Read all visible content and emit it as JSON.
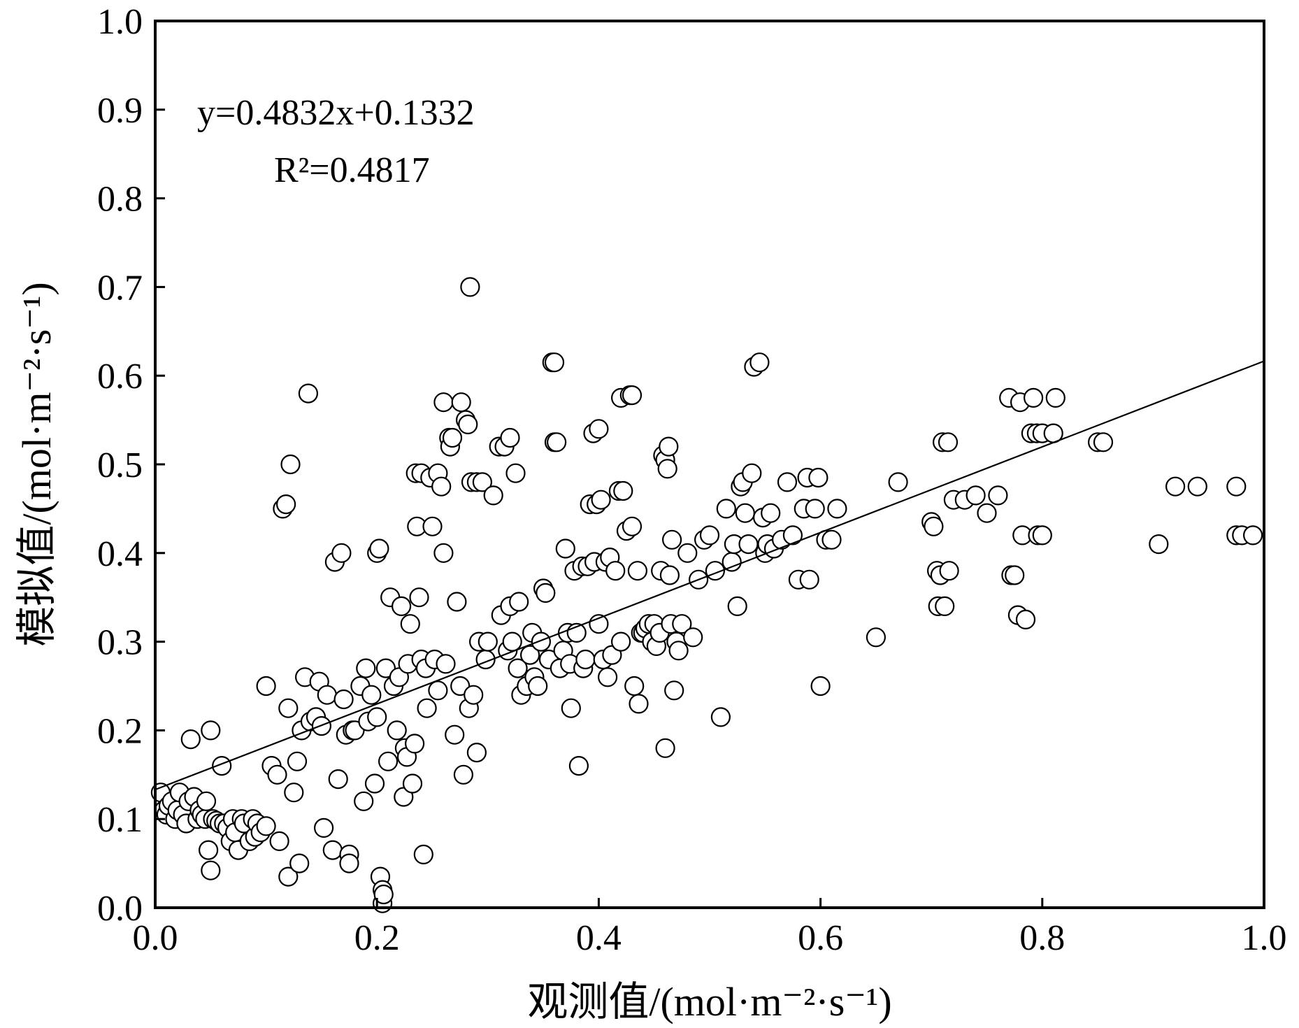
{
  "chart_data": {
    "type": "scatter",
    "xlabel": "观测值/(mol·m⁻²·s⁻¹)",
    "ylabel": "模拟值/(mol·m⁻²·s⁻¹)",
    "xlim": [
      0.0,
      1.0
    ],
    "ylim": [
      0.0,
      1.0
    ],
    "x_ticks": [
      "0.0",
      "0.2",
      "0.4",
      "0.6",
      "0.8",
      "1.0"
    ],
    "y_ticks": [
      "0.0",
      "0.1",
      "0.2",
      "0.3",
      "0.4",
      "0.5",
      "0.6",
      "0.7",
      "0.8",
      "0.9",
      "1.0"
    ],
    "grid": false,
    "annotations": {
      "equation": "y=0.4832x+0.1332",
      "r2": "R²=0.4817"
    },
    "fit_line": {
      "slope": 0.4832,
      "intercept": 0.1332
    },
    "points": [
      [
        0.005,
        0.13
      ],
      [
        0.008,
        0.11
      ],
      [
        0.01,
        0.105
      ],
      [
        0.012,
        0.115
      ],
      [
        0.015,
        0.12
      ],
      [
        0.018,
        0.1
      ],
      [
        0.02,
        0.11
      ],
      [
        0.022,
        0.13
      ],
      [
        0.025,
        0.105
      ],
      [
        0.028,
        0.095
      ],
      [
        0.03,
        0.12
      ],
      [
        0.032,
        0.19
      ],
      [
        0.035,
        0.125
      ],
      [
        0.038,
        0.1
      ],
      [
        0.04,
        0.11
      ],
      [
        0.042,
        0.105
      ],
      [
        0.045,
        0.1
      ],
      [
        0.046,
        0.12
      ],
      [
        0.048,
        0.065
      ],
      [
        0.05,
        0.2
      ],
      [
        0.05,
        0.042
      ],
      [
        0.052,
        0.1
      ],
      [
        0.055,
        0.098
      ],
      [
        0.058,
        0.095
      ],
      [
        0.06,
        0.16
      ],
      [
        0.062,
        0.095
      ],
      [
        0.065,
        0.09
      ],
      [
        0.068,
        0.075
      ],
      [
        0.07,
        0.1
      ],
      [
        0.072,
        0.085
      ],
      [
        0.075,
        0.065
      ],
      [
        0.078,
        0.1
      ],
      [
        0.08,
        0.095
      ],
      [
        0.085,
        0.075
      ],
      [
        0.088,
        0.1
      ],
      [
        0.09,
        0.08
      ],
      [
        0.092,
        0.095
      ],
      [
        0.095,
        0.085
      ],
      [
        0.1,
        0.092
      ],
      [
        0.1,
        0.25
      ],
      [
        0.105,
        0.16
      ],
      [
        0.11,
        0.15
      ],
      [
        0.112,
        0.075
      ],
      [
        0.115,
        0.45
      ],
      [
        0.118,
        0.455
      ],
      [
        0.12,
        0.035
      ],
      [
        0.12,
        0.225
      ],
      [
        0.122,
        0.5
      ],
      [
        0.125,
        0.13
      ],
      [
        0.128,
        0.165
      ],
      [
        0.13,
        0.05
      ],
      [
        0.132,
        0.2
      ],
      [
        0.135,
        0.26
      ],
      [
        0.138,
        0.58
      ],
      [
        0.14,
        0.21
      ],
      [
        0.145,
        0.215
      ],
      [
        0.148,
        0.255
      ],
      [
        0.15,
        0.205
      ],
      [
        0.152,
        0.09
      ],
      [
        0.155,
        0.24
      ],
      [
        0.16,
        0.065
      ],
      [
        0.162,
        0.39
      ],
      [
        0.165,
        0.145
      ],
      [
        0.168,
        0.4
      ],
      [
        0.17,
        0.235
      ],
      [
        0.172,
        0.195
      ],
      [
        0.175,
        0.06
      ],
      [
        0.175,
        0.05
      ],
      [
        0.178,
        0.2
      ],
      [
        0.18,
        0.2
      ],
      [
        0.185,
        0.25
      ],
      [
        0.188,
        0.12
      ],
      [
        0.19,
        0.27
      ],
      [
        0.192,
        0.21
      ],
      [
        0.195,
        0.24
      ],
      [
        0.198,
        0.14
      ],
      [
        0.2,
        0.4
      ],
      [
        0.2,
        0.215
      ],
      [
        0.202,
        0.405
      ],
      [
        0.203,
        0.035
      ],
      [
        0.205,
        0.02
      ],
      [
        0.205,
        0.005
      ],
      [
        0.206,
        0.015
      ],
      [
        0.208,
        0.27
      ],
      [
        0.21,
        0.165
      ],
      [
        0.212,
        0.35
      ],
      [
        0.215,
        0.25
      ],
      [
        0.218,
        0.2
      ],
      [
        0.22,
        0.26
      ],
      [
        0.222,
        0.34
      ],
      [
        0.224,
        0.125
      ],
      [
        0.225,
        0.18
      ],
      [
        0.227,
        0.17
      ],
      [
        0.228,
        0.275
      ],
      [
        0.23,
        0.32
      ],
      [
        0.232,
        0.14
      ],
      [
        0.234,
        0.185
      ],
      [
        0.235,
        0.49
      ],
      [
        0.236,
        0.43
      ],
      [
        0.238,
        0.35
      ],
      [
        0.24,
        0.49
      ],
      [
        0.24,
        0.28
      ],
      [
        0.242,
        0.06
      ],
      [
        0.244,
        0.27
      ],
      [
        0.245,
        0.225
      ],
      [
        0.248,
        0.485
      ],
      [
        0.25,
        0.43
      ],
      [
        0.252,
        0.28
      ],
      [
        0.255,
        0.49
      ],
      [
        0.255,
        0.245
      ],
      [
        0.258,
        0.475
      ],
      [
        0.26,
        0.57
      ],
      [
        0.26,
        0.4
      ],
      [
        0.262,
        0.275
      ],
      [
        0.265,
        0.53
      ],
      [
        0.266,
        0.52
      ],
      [
        0.268,
        0.53
      ],
      [
        0.27,
        0.195
      ],
      [
        0.272,
        0.345
      ],
      [
        0.275,
        0.25
      ],
      [
        0.276,
        0.57
      ],
      [
        0.278,
        0.15
      ],
      [
        0.28,
        0.55
      ],
      [
        0.282,
        0.545
      ],
      [
        0.283,
        0.225
      ],
      [
        0.284,
        0.7
      ],
      [
        0.285,
        0.48
      ],
      [
        0.287,
        0.24
      ],
      [
        0.29,
        0.48
      ],
      [
        0.29,
        0.175
      ],
      [
        0.292,
        0.3
      ],
      [
        0.295,
        0.48
      ],
      [
        0.298,
        0.28
      ],
      [
        0.3,
        0.3
      ],
      [
        0.305,
        0.465
      ],
      [
        0.31,
        0.52
      ],
      [
        0.312,
        0.33
      ],
      [
        0.315,
        0.52
      ],
      [
        0.318,
        0.29
      ],
      [
        0.32,
        0.53
      ],
      [
        0.32,
        0.34
      ],
      [
        0.322,
        0.3
      ],
      [
        0.325,
        0.49
      ],
      [
        0.327,
        0.27
      ],
      [
        0.328,
        0.345
      ],
      [
        0.33,
        0.24
      ],
      [
        0.335,
        0.25
      ],
      [
        0.338,
        0.285
      ],
      [
        0.34,
        0.31
      ],
      [
        0.342,
        0.26
      ],
      [
        0.345,
        0.25
      ],
      [
        0.348,
        0.3
      ],
      [
        0.35,
        0.36
      ],
      [
        0.352,
        0.355
      ],
      [
        0.355,
        0.28
      ],
      [
        0.358,
        0.615
      ],
      [
        0.36,
        0.615
      ],
      [
        0.36,
        0.525
      ],
      [
        0.362,
        0.525
      ],
      [
        0.365,
        0.27
      ],
      [
        0.368,
        0.29
      ],
      [
        0.37,
        0.405
      ],
      [
        0.372,
        0.31
      ],
      [
        0.374,
        0.275
      ],
      [
        0.375,
        0.225
      ],
      [
        0.378,
        0.38
      ],
      [
        0.38,
        0.31
      ],
      [
        0.382,
        0.16
      ],
      [
        0.385,
        0.385
      ],
      [
        0.386,
        0.27
      ],
      [
        0.388,
        0.28
      ],
      [
        0.39,
        0.385
      ],
      [
        0.392,
        0.455
      ],
      [
        0.395,
        0.535
      ],
      [
        0.396,
        0.39
      ],
      [
        0.398,
        0.455
      ],
      [
        0.4,
        0.54
      ],
      [
        0.4,
        0.32
      ],
      [
        0.402,
        0.46
      ],
      [
        0.404,
        0.28
      ],
      [
        0.406,
        0.39
      ],
      [
        0.408,
        0.26
      ],
      [
        0.41,
        0.395
      ],
      [
        0.412,
        0.285
      ],
      [
        0.415,
        0.38
      ],
      [
        0.418,
        0.47
      ],
      [
        0.42,
        0.575
      ],
      [
        0.42,
        0.3
      ],
      [
        0.422,
        0.47
      ],
      [
        0.425,
        0.425
      ],
      [
        0.428,
        0.578
      ],
      [
        0.43,
        0.578
      ],
      [
        0.43,
        0.43
      ],
      [
        0.432,
        0.25
      ],
      [
        0.435,
        0.38
      ],
      [
        0.436,
        0.23
      ],
      [
        0.438,
        0.31
      ],
      [
        0.44,
        0.31
      ],
      [
        0.442,
        0.315
      ],
      [
        0.445,
        0.32
      ],
      [
        0.448,
        0.3
      ],
      [
        0.45,
        0.32
      ],
      [
        0.452,
        0.295
      ],
      [
        0.455,
        0.31
      ],
      [
        0.456,
        0.38
      ],
      [
        0.458,
        0.51
      ],
      [
        0.46,
        0.505
      ],
      [
        0.46,
        0.18
      ],
      [
        0.462,
        0.495
      ],
      [
        0.463,
        0.52
      ],
      [
        0.464,
        0.375
      ],
      [
        0.465,
        0.32
      ],
      [
        0.466,
        0.415
      ],
      [
        0.468,
        0.245
      ],
      [
        0.47,
        0.3
      ],
      [
        0.472,
        0.29
      ],
      [
        0.475,
        0.32
      ],
      [
        0.48,
        0.4
      ],
      [
        0.485,
        0.305
      ],
      [
        0.49,
        0.37
      ],
      [
        0.495,
        0.415
      ],
      [
        0.5,
        0.42
      ],
      [
        0.505,
        0.38
      ],
      [
        0.51,
        0.215
      ],
      [
        0.515,
        0.45
      ],
      [
        0.52,
        0.39
      ],
      [
        0.522,
        0.41
      ],
      [
        0.525,
        0.34
      ],
      [
        0.528,
        0.475
      ],
      [
        0.53,
        0.48
      ],
      [
        0.532,
        0.445
      ],
      [
        0.535,
        0.41
      ],
      [
        0.538,
        0.49
      ],
      [
        0.54,
        0.61
      ],
      [
        0.545,
        0.615
      ],
      [
        0.548,
        0.44
      ],
      [
        0.55,
        0.4
      ],
      [
        0.552,
        0.41
      ],
      [
        0.555,
        0.445
      ],
      [
        0.558,
        0.405
      ],
      [
        0.565,
        0.415
      ],
      [
        0.57,
        0.48
      ],
      [
        0.575,
        0.42
      ],
      [
        0.58,
        0.37
      ],
      [
        0.585,
        0.45
      ],
      [
        0.588,
        0.485
      ],
      [
        0.59,
        0.37
      ],
      [
        0.595,
        0.45
      ],
      [
        0.598,
        0.485
      ],
      [
        0.6,
        0.25
      ],
      [
        0.605,
        0.415
      ],
      [
        0.61,
        0.415
      ],
      [
        0.615,
        0.45
      ],
      [
        0.65,
        0.305
      ],
      [
        0.67,
        0.48
      ],
      [
        0.7,
        0.435
      ],
      [
        0.702,
        0.43
      ],
      [
        0.705,
        0.38
      ],
      [
        0.706,
        0.34
      ],
      [
        0.708,
        0.375
      ],
      [
        0.71,
        0.525
      ],
      [
        0.712,
        0.34
      ],
      [
        0.715,
        0.525
      ],
      [
        0.716,
        0.38
      ],
      [
        0.72,
        0.46
      ],
      [
        0.73,
        0.46
      ],
      [
        0.74,
        0.465
      ],
      [
        0.75,
        0.445
      ],
      [
        0.76,
        0.465
      ],
      [
        0.77,
        0.575
      ],
      [
        0.772,
        0.375
      ],
      [
        0.775,
        0.375
      ],
      [
        0.778,
        0.33
      ],
      [
        0.78,
        0.57
      ],
      [
        0.782,
        0.42
      ],
      [
        0.785,
        0.325
      ],
      [
        0.79,
        0.535
      ],
      [
        0.792,
        0.575
      ],
      [
        0.795,
        0.535
      ],
      [
        0.796,
        0.42
      ],
      [
        0.8,
        0.535
      ],
      [
        0.8,
        0.42
      ],
      [
        0.81,
        0.535
      ],
      [
        0.812,
        0.575
      ],
      [
        0.85,
        0.525
      ],
      [
        0.855,
        0.525
      ],
      [
        0.905,
        0.41
      ],
      [
        0.92,
        0.475
      ],
      [
        0.94,
        0.475
      ],
      [
        0.975,
        0.475
      ],
      [
        0.975,
        0.42
      ],
      [
        0.98,
        0.42
      ],
      [
        0.99,
        0.42
      ]
    ]
  }
}
